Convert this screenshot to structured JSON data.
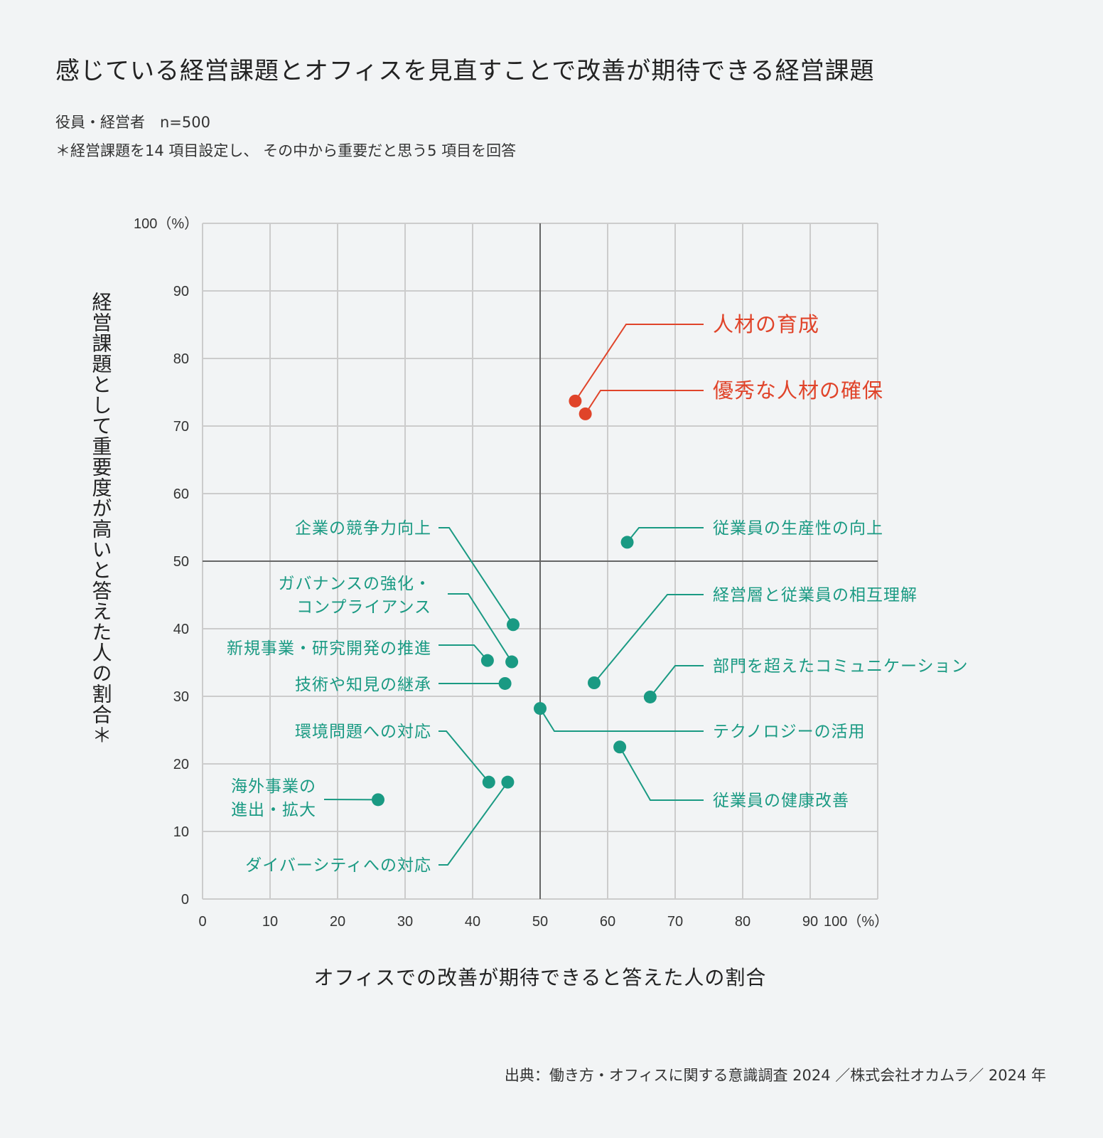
{
  "title": "感じている経営課題とオフィスを見直すことで改善が期待できる経営課題",
  "subtitle": "役員・経営者　n=500",
  "note": "＊経営課題を14 項目設定し、 その中から重要だと思う5 項目を回答",
  "source": "出典：働き方・オフィスに関する意識調査 2024 ／株式会社オカムラ／ 2024 年",
  "colors": {
    "highlight": "#e0442a",
    "normal": "#1a9a83",
    "grid": "#cccccc",
    "axis": "#666666",
    "background": "#f2f4f5"
  },
  "chart_data": {
    "type": "scatter",
    "title": "感じている経営課題とオフィスを見直すことで改善が期待できる経営課題",
    "xlabel": "オフィスでの改善が期待できると答えた人の割合",
    "ylabel": "経営課題として重要度が高いと答えた人の割合＊",
    "xlim": [
      0,
      100
    ],
    "ylim": [
      0,
      100
    ],
    "x_ticks": [
      "0",
      "10",
      "20",
      "30",
      "40",
      "50",
      "60",
      "70",
      "80",
      "90",
      "100（%）"
    ],
    "y_ticks": [
      "0",
      "10",
      "20",
      "30",
      "40",
      "50",
      "60",
      "70",
      "80",
      "90",
      "100（%）"
    ],
    "grid": true,
    "reference_lines": {
      "x": 50,
      "y": 50
    },
    "points": [
      {
        "label": "人材の育成",
        "x": 55.2,
        "y": 73.7,
        "highlight": true
      },
      {
        "label": "優秀な人材の確保",
        "x": 56.7,
        "y": 71.8,
        "highlight": true
      },
      {
        "label": "従業員の生産性の向上",
        "x": 62.9,
        "y": 52.8,
        "highlight": false
      },
      {
        "label": "企業の競争力向上",
        "x": 46.0,
        "y": 40.6,
        "highlight": false
      },
      {
        "label": "ガバナンスの強化・\nコンプライアンス",
        "x": 45.8,
        "y": 35.1,
        "highlight": false
      },
      {
        "label": "新規事業・研究開発の推進",
        "x": 42.2,
        "y": 35.3,
        "highlight": false
      },
      {
        "label": "技術や知見の継承",
        "x": 44.8,
        "y": 31.9,
        "highlight": false
      },
      {
        "label": "経営層と従業員の相互理解",
        "x": 58.0,
        "y": 32.0,
        "highlight": false
      },
      {
        "label": "部門を超えたコミュニケーション",
        "x": 66.3,
        "y": 29.9,
        "highlight": false
      },
      {
        "label": "テクノロジーの活用",
        "x": 50.0,
        "y": 28.2,
        "highlight": false
      },
      {
        "label": "従業員の健康改善",
        "x": 61.8,
        "y": 22.5,
        "highlight": false
      },
      {
        "label": "環境問題への対応",
        "x": 42.4,
        "y": 17.3,
        "highlight": false
      },
      {
        "label": "ダイバーシティへの対応",
        "x": 45.2,
        "y": 17.3,
        "highlight": false
      },
      {
        "label": "海外事業の\n進出・拡大",
        "x": 26.0,
        "y": 14.7,
        "highlight": false
      }
    ]
  }
}
